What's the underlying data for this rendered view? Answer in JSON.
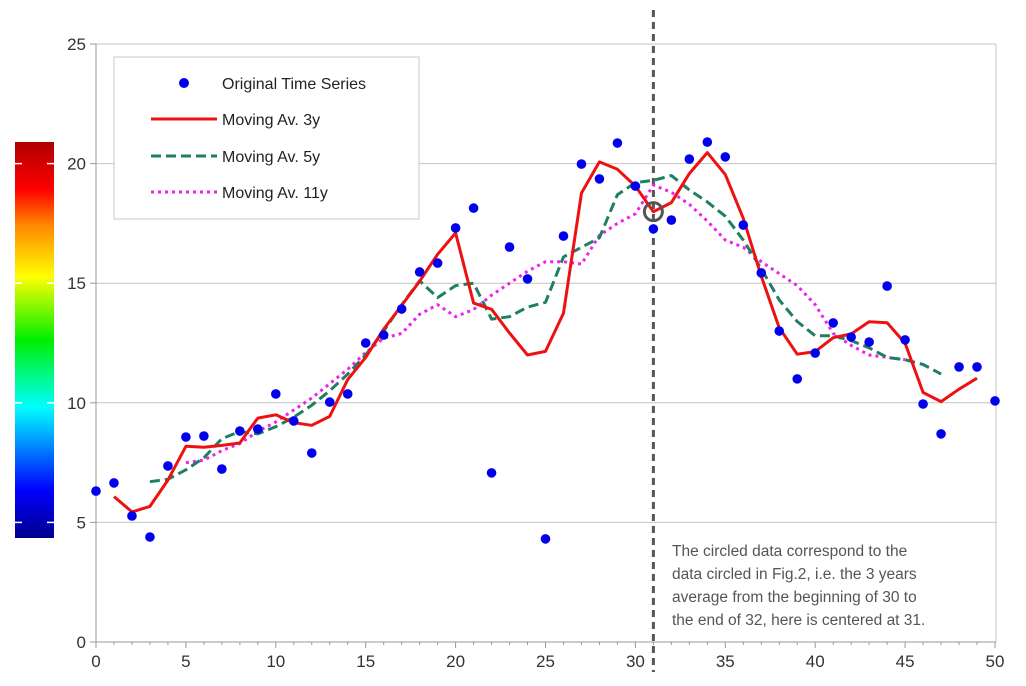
{
  "chart_data": {
    "type": "line",
    "title": "",
    "xlabel": "",
    "ylabel": "",
    "xlim": [
      0,
      50
    ],
    "ylim": [
      0,
      25
    ],
    "x_ticks": [
      "0",
      "5",
      "10",
      "15",
      "20",
      "25",
      "30",
      "35",
      "40",
      "45",
      "50"
    ],
    "y_ticks": [
      "0",
      "5",
      "10",
      "15",
      "20",
      "25"
    ],
    "grid": "horizontal",
    "legend_position": "top-left",
    "series": [
      {
        "name": "Original Time Series",
        "style": "markers",
        "color": "#0000ee",
        "x": [
          0,
          1,
          2,
          3,
          4,
          5,
          6,
          7,
          8,
          9,
          10,
          11,
          12,
          13,
          14,
          15,
          16,
          17,
          18,
          19,
          20,
          21,
          22,
          23,
          24,
          25,
          26,
          27,
          28,
          29,
          30,
          31,
          32,
          33,
          34,
          35,
          36,
          37,
          38,
          39,
          40,
          41,
          42,
          43,
          44,
          45,
          46,
          47,
          48,
          49,
          50
        ],
        "y": [
          6.31,
          6.65,
          5.27,
          4.39,
          7.36,
          8.57,
          8.61,
          7.23,
          8.82,
          8.9,
          10.37,
          9.24,
          7.9,
          10.03,
          10.37,
          12.5,
          12.83,
          13.92,
          15.47,
          15.84,
          17.31,
          18.14,
          7.07,
          16.51,
          15.18,
          4.31,
          16.97,
          19.98,
          19.36,
          20.86,
          19.06,
          17.27,
          17.64,
          20.19,
          20.9,
          20.28,
          17.43,
          15.43,
          13.0,
          11.0,
          12.08,
          13.34,
          12.75,
          12.54,
          14.88,
          12.63,
          9.95,
          8.7,
          11.5,
          11.5,
          10.08
        ]
      },
      {
        "name": "Moving Av. 3y",
        "style": "solid",
        "color": "#ee1111",
        "x": [
          1,
          2,
          3,
          4,
          5,
          6,
          7,
          8,
          9,
          10,
          11,
          12,
          13,
          14,
          15,
          16,
          17,
          18,
          19,
          20,
          21,
          22,
          23,
          24,
          25,
          26,
          27,
          28,
          29,
          30,
          31,
          32,
          33,
          34,
          35,
          36,
          37,
          38,
          39,
          40,
          41,
          42,
          43,
          44,
          45,
          46,
          47,
          48,
          49
        ],
        "y": [
          6.08,
          5.44,
          5.67,
          6.77,
          8.18,
          8.14,
          8.22,
          8.32,
          9.36,
          9.5,
          9.17,
          9.06,
          9.43,
          10.97,
          11.9,
          13.08,
          14.07,
          15.08,
          16.21,
          17.1,
          14.17,
          13.91,
          12.92,
          12.0,
          12.15,
          13.75,
          18.77,
          20.07,
          19.76,
          19.06,
          17.99,
          18.37,
          19.58,
          20.46,
          19.54,
          17.71,
          15.29,
          13.14,
          12.03,
          12.14,
          12.72,
          12.88,
          13.39,
          13.35,
          12.49,
          10.43,
          10.05,
          10.57,
          11.03
        ]
      },
      {
        "name": "Moving Av. 5y",
        "style": "dashed",
        "color": "#1e7f62",
        "x": [
          3,
          4,
          5,
          6,
          7,
          8,
          9,
          10,
          11,
          12,
          13,
          14,
          15,
          16,
          17,
          18,
          19,
          20,
          21,
          22,
          23,
          24,
          25,
          26,
          27,
          28,
          29,
          30,
          31,
          32,
          33,
          34,
          35,
          36,
          37,
          38,
          39,
          40,
          41,
          42,
          43,
          44,
          45,
          46,
          47
        ],
        "y": [
          6.7,
          6.8,
          7.2,
          7.7,
          8.5,
          8.8,
          8.7,
          9.0,
          9.4,
          9.9,
          10.5,
          11.2,
          12.0,
          13.0,
          14.1,
          15.1,
          14.4,
          14.9,
          15.0,
          13.5,
          13.6,
          14.0,
          14.2,
          16.1,
          16.5,
          16.9,
          18.7,
          19.2,
          19.3,
          19.5,
          18.9,
          18.4,
          17.8,
          16.8,
          15.6,
          14.3,
          13.4,
          12.8,
          12.8,
          12.6,
          12.3,
          11.9,
          11.8,
          11.6,
          11.2
        ]
      },
      {
        "name": "Moving Av. 11y",
        "style": "dotted",
        "color": "#ee22ee",
        "x": [
          5,
          6,
          7,
          8,
          9,
          10,
          11,
          12,
          13,
          14,
          15,
          16,
          17,
          18,
          19,
          20,
          21,
          22,
          23,
          24,
          25,
          26,
          27,
          28,
          29,
          30,
          31,
          32,
          33,
          34,
          35,
          36,
          37,
          38,
          39,
          40,
          41,
          42,
          43,
          44,
          45
        ],
        "y": [
          7.5,
          7.6,
          8.0,
          8.3,
          8.8,
          9.2,
          9.7,
          10.2,
          10.8,
          11.4,
          12.1,
          12.7,
          12.9,
          13.7,
          14.1,
          13.6,
          13.9,
          14.5,
          15.0,
          15.5,
          15.9,
          15.9,
          15.8,
          17.0,
          17.5,
          17.9,
          19.1,
          18.8,
          18.3,
          17.6,
          16.8,
          16.5,
          15.9,
          15.4,
          14.9,
          14.1,
          12.9,
          12.4,
          12.0,
          11.9,
          11.8
        ]
      }
    ],
    "annotations": {
      "vertical_line_x": 31,
      "circled_point": {
        "x": 31,
        "y": 17.99
      },
      "note_lines": [
        "The circled data correspond to the",
        "data circled in Fig.2, i.e. the 3 years",
        "average from the beginning of 30 to",
        "the end of 32, here is centered at 31."
      ]
    },
    "colorbar": {
      "ticks": [
        5,
        10,
        15,
        20
      ],
      "colors": [
        "#00008b",
        "#0000ff",
        "#00ffff",
        "#00ee00",
        "#ffff00",
        "#ff8800",
        "#ff0000",
        "#b00000"
      ]
    }
  }
}
